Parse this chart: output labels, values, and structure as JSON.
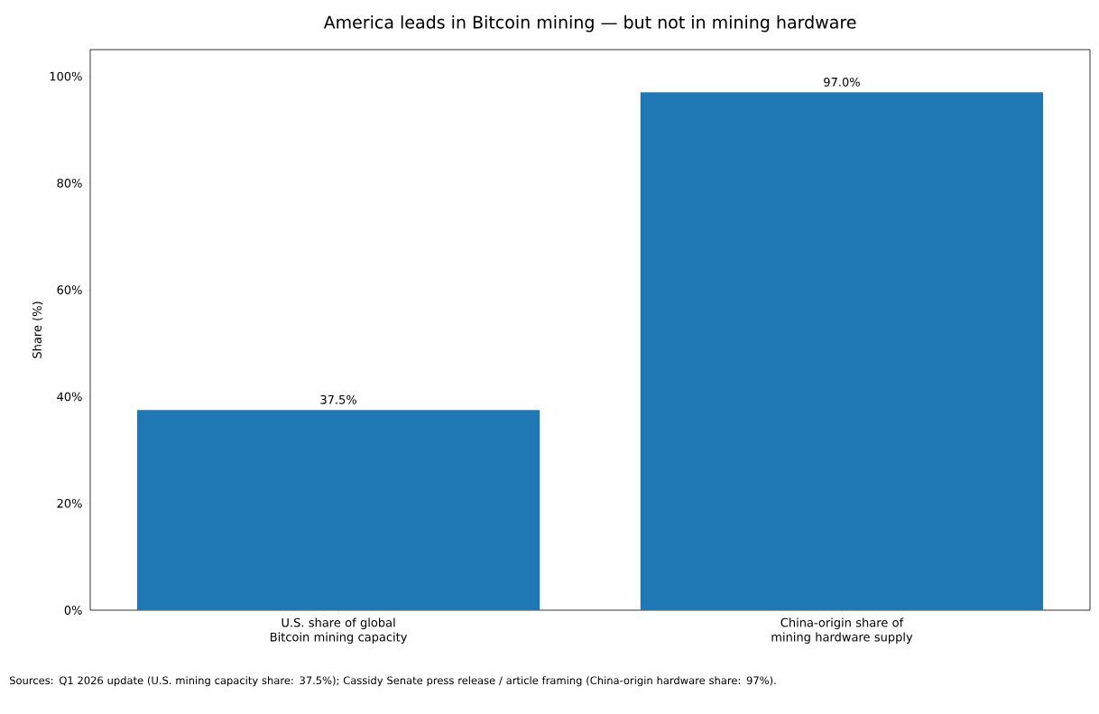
{
  "chart_data": {
    "type": "bar",
    "title": "America leads in Bitcoin mining — but not in mining hardware",
    "ylabel": "Share (%)",
    "categories": [
      "U.S. share of global Bitcoin mining capacity",
      "China-origin share of mining hardware supply"
    ],
    "values": [
      37.5,
      97.0
    ],
    "value_labels": [
      "37.5%",
      "97.0%"
    ],
    "color": "#1f77b4",
    "ylim": [
      0,
      105
    ],
    "yticks": [
      {
        "value": 0,
        "label": "0%"
      },
      {
        "value": 20,
        "label": "20%"
      },
      {
        "value": 40,
        "label": "40%"
      },
      {
        "value": 60,
        "label": "60%"
      },
      {
        "value": 80,
        "label": "80%"
      },
      {
        "value": 100,
        "label": "100%"
      }
    ],
    "annotations": [
      "Sources: Q1 2026 update (U.S. mining capacity share: 37.5%); Cassidy Senate press release / article framing (China-origin hardware share: 97%)."
    ]
  }
}
